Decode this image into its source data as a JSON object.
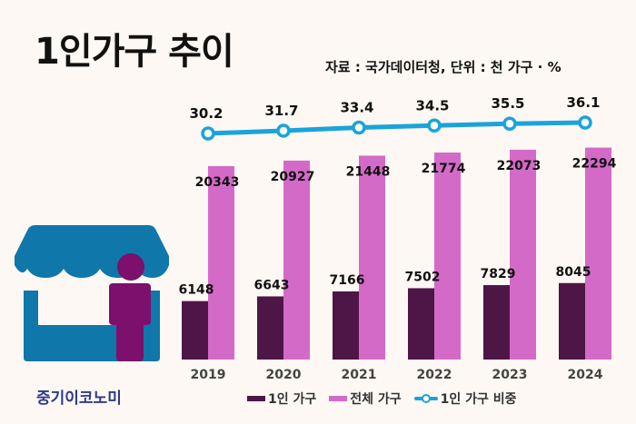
{
  "header": {
    "title": "1인가구 추이",
    "source": "자료 : 국가데이터청, 단위 : 천 가구 · %"
  },
  "brand": {
    "name": "중기이코노미"
  },
  "colors": {
    "single": "#4e1646",
    "total": "#d46ac8",
    "ratio": "#1aa3dc",
    "store": "#0f77aa",
    "person": "#7d0f6d"
  },
  "chart_data": {
    "type": "bar",
    "title": "1인가구 추이",
    "categories": [
      "2019",
      "2020",
      "2021",
      "2022",
      "2023",
      "2024"
    ],
    "series": [
      {
        "name": "1인 가구",
        "type": "bar",
        "values": [
          6148,
          6643,
          7166,
          7502,
          7829,
          8045
        ]
      },
      {
        "name": "전체 가구",
        "type": "bar",
        "values": [
          20343,
          20927,
          21448,
          21774,
          22073,
          22294
        ]
      },
      {
        "name": "1인 가구 비중",
        "type": "line",
        "values": [
          30.2,
          31.7,
          33.4,
          34.5,
          35.5,
          36.1
        ]
      }
    ],
    "labels": {
      "single": [
        "6148",
        "6643",
        "7166",
        "7502",
        "7829",
        "8045"
      ],
      "total": [
        "20343",
        "20927",
        "21448",
        "21774",
        "22073",
        "22294"
      ],
      "ratio": [
        "30.2",
        "31.7",
        "33.4",
        "34.5",
        "35.5",
        "36.1"
      ]
    },
    "xlabel": "",
    "ylabel": "",
    "units": "천 가구 · %",
    "legend_position": "bottom"
  },
  "legend": {
    "single": "1인 가구",
    "total": "전체 가구",
    "ratio": "1인 가구 비중"
  }
}
